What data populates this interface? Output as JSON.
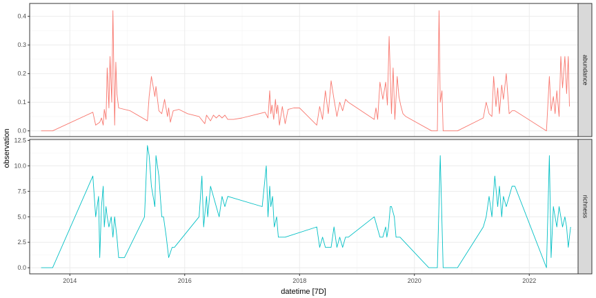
{
  "chart_data": {
    "type": "line",
    "xlabel": "datetime [7D]",
    "ylabel": "observation",
    "x_ticks": [
      "2014",
      "2016",
      "2018",
      "2020",
      "2022"
    ],
    "x_range": [
      2013.3,
      2022.85
    ],
    "grid": true,
    "facet_position": "right",
    "panels": [
      {
        "name": "abundance",
        "color": "#F8766D",
        "ylim": [
          -0.02,
          0.445
        ],
        "y_ticks": [
          "0.0",
          "0.1",
          "0.2",
          "0.3",
          "0.4"
        ],
        "x": [
          2013.5,
          2013.7,
          2014.4,
          2014.45,
          2014.52,
          2014.55,
          2014.58,
          2014.6,
          2014.63,
          2014.65,
          2014.68,
          2014.7,
          2014.73,
          2014.75,
          2014.78,
          2014.8,
          2014.82,
          2014.85,
          2015.05,
          2015.35,
          2015.38,
          2015.42,
          2015.48,
          2015.5,
          2015.55,
          2015.6,
          2015.65,
          2015.7,
          2015.72,
          2015.75,
          2015.8,
          2015.9,
          2016.05,
          2016.25,
          2016.35,
          2016.38,
          2016.45,
          2016.5,
          2016.55,
          2016.6,
          2016.65,
          2016.7,
          2016.75,
          2016.85,
          2017.0,
          2017.4,
          2017.45,
          2017.48,
          2017.5,
          2017.52,
          2017.55,
          2017.58,
          2017.6,
          2017.62,
          2017.65,
          2017.7,
          2017.75,
          2017.8,
          2017.9,
          2018.0,
          2018.1,
          2018.3,
          2018.35,
          2018.4,
          2018.45,
          2018.5,
          2018.55,
          2018.6,
          2018.65,
          2018.7,
          2018.75,
          2018.8,
          2018.85,
          2019.3,
          2019.33,
          2019.36,
          2019.4,
          2019.45,
          2019.5,
          2019.53,
          2019.56,
          2019.6,
          2019.63,
          2019.66,
          2019.7,
          2019.73,
          2019.76,
          2019.8,
          2019.85,
          2020.3,
          2020.4,
          2020.43,
          2020.45,
          2020.48,
          2020.5,
          2020.55,
          2020.75,
          2021.2,
          2021.25,
          2021.3,
          2021.35,
          2021.38,
          2021.42,
          2021.45,
          2021.48,
          2021.52,
          2021.55,
          2021.6,
          2021.65,
          2021.7,
          2021.75,
          2022.3,
          2022.35,
          2022.38,
          2022.42,
          2022.45,
          2022.48,
          2022.52,
          2022.55,
          2022.58,
          2022.62,
          2022.65,
          2022.68,
          2022.7
        ],
        "values": [
          0.0,
          0.0,
          0.065,
          0.02,
          0.03,
          0.045,
          0.02,
          0.075,
          0.04,
          0.22,
          0.08,
          0.26,
          0.1,
          0.42,
          0.02,
          0.24,
          0.13,
          0.08,
          0.07,
          0.035,
          0.12,
          0.19,
          0.12,
          0.155,
          0.07,
          0.06,
          0.11,
          0.05,
          0.08,
          0.03,
          0.07,
          0.075,
          0.06,
          0.05,
          0.025,
          0.055,
          0.035,
          0.055,
          0.045,
          0.055,
          0.045,
          0.055,
          0.04,
          0.04,
          0.045,
          0.065,
          0.045,
          0.14,
          0.06,
          0.09,
          0.04,
          0.11,
          0.06,
          0.09,
          0.02,
          0.085,
          0.025,
          0.075,
          0.08,
          0.08,
          0.06,
          0.02,
          0.085,
          0.04,
          0.14,
          0.06,
          0.175,
          0.11,
          0.05,
          0.1,
          0.07,
          0.11,
          0.1,
          0.04,
          0.08,
          0.04,
          0.17,
          0.11,
          0.17,
          0.09,
          0.33,
          0.06,
          0.22,
          0.04,
          0.19,
          0.12,
          0.09,
          0.06,
          0.05,
          0.0,
          0.0,
          0.42,
          0.1,
          0.14,
          0.0,
          0.0,
          0.0,
          0.045,
          0.1,
          0.06,
          0.05,
          0.19,
          0.085,
          0.15,
          0.06,
          0.16,
          0.11,
          0.2,
          0.06,
          0.07,
          0.07,
          0.0,
          0.19,
          0.07,
          0.12,
          0.06,
          0.14,
          0.05,
          0.26,
          0.15,
          0.26,
          0.13,
          0.26,
          0.085
        ]
      },
      {
        "name": "richness",
        "color": "#00BFC4",
        "ylim": [
          -0.6,
          12.6
        ],
        "y_ticks": [
          "0.0",
          "2.5",
          "5.0",
          "7.5",
          "10.0",
          "12.5"
        ],
        "x": [
          2013.5,
          2013.7,
          2014.4,
          2014.45,
          2014.5,
          2014.52,
          2014.55,
          2014.58,
          2014.6,
          2014.63,
          2014.65,
          2014.68,
          2014.72,
          2014.75,
          2014.78,
          2014.82,
          2014.85,
          2014.95,
          2015.3,
          2015.35,
          2015.38,
          2015.42,
          2015.45,
          2015.48,
          2015.5,
          2015.55,
          2015.6,
          2015.63,
          2015.68,
          2015.72,
          2015.78,
          2015.82,
          2016.25,
          2016.3,
          2016.33,
          2016.38,
          2016.4,
          2016.45,
          2016.5,
          2016.55,
          2016.6,
          2016.65,
          2016.7,
          2016.75,
          2017.35,
          2017.42,
          2017.45,
          2017.48,
          2017.5,
          2017.53,
          2017.56,
          2017.6,
          2017.63,
          2017.65,
          2017.7,
          2017.75,
          2018.3,
          2018.35,
          2018.4,
          2018.45,
          2018.55,
          2018.6,
          2018.65,
          2018.7,
          2018.75,
          2018.8,
          2018.85,
          2019.3,
          2019.4,
          2019.45,
          2019.5,
          2019.52,
          2019.55,
          2019.58,
          2019.6,
          2019.65,
          2019.68,
          2019.7,
          2019.75,
          2020.25,
          2020.4,
          2020.45,
          2020.5,
          2020.55,
          2020.75,
          2021.2,
          2021.25,
          2021.3,
          2021.35,
          2021.4,
          2021.45,
          2021.48,
          2021.52,
          2021.55,
          2021.6,
          2021.65,
          2021.7,
          2021.75,
          2022.3,
          2022.35,
          2022.38,
          2022.42,
          2022.45,
          2022.48,
          2022.52,
          2022.55,
          2022.58,
          2022.62,
          2022.65,
          2022.68,
          2022.72
        ],
        "values": [
          0,
          0,
          9,
          5,
          7,
          1,
          6,
          8,
          4,
          6,
          5,
          4,
          5,
          3,
          5,
          3,
          1,
          1,
          5,
          12,
          11,
          8,
          7,
          6,
          11,
          9,
          5,
          5,
          3,
          1,
          2,
          2,
          5,
          9,
          4,
          7,
          5,
          8,
          7,
          6,
          5,
          7,
          6,
          7,
          6,
          10,
          5,
          8,
          6,
          7,
          4,
          5,
          3,
          3,
          3,
          3,
          4,
          2,
          3,
          2,
          2,
          4,
          2,
          3,
          2,
          3,
          3,
          5,
          3,
          3,
          4,
          3,
          4,
          6,
          6,
          5,
          3,
          3,
          3,
          0,
          0,
          11,
          0,
          0,
          0,
          4,
          5,
          7,
          5,
          9,
          6,
          8,
          5,
          7,
          6,
          7,
          8,
          8,
          0,
          11,
          1,
          6,
          5,
          4,
          6,
          5,
          4,
          5,
          4,
          2,
          4
        ]
      }
    ]
  }
}
